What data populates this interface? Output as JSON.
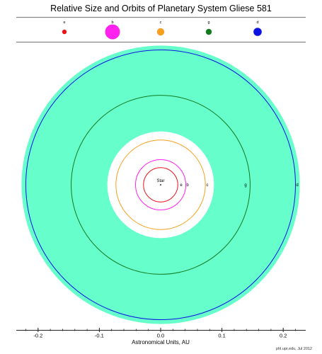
{
  "title": "Relative Size and Orbits of Planetary System Gliese 581",
  "star_label": "Star",
  "planets": [
    {
      "name": "e",
      "color": "#e8141c",
      "size_rank": 1,
      "orbit_au": 0.028
    },
    {
      "name": "b",
      "color": "#ff22ee",
      "size_rank": 5,
      "orbit_au": 0.041
    },
    {
      "name": "c",
      "color": "#f5a020",
      "size_rank": 3,
      "orbit_au": 0.073
    },
    {
      "name": "g",
      "color": "#137a1e",
      "size_rank": 2,
      "orbit_au": 0.146
    },
    {
      "name": "d",
      "color": "#0c12e0",
      "size_rank": 4,
      "orbit_au": 0.22
    }
  ],
  "habitable_zone_au": [
    0.087,
    0.227
  ],
  "habitable_zone_color": "#66ffcc",
  "axis": {
    "label": "Astronomical Units, AU",
    "range": [
      -0.23,
      0.23
    ],
    "ticks": [
      "-0.2",
      "-0.1",
      "0.0",
      "0.1",
      "0.2"
    ],
    "tick_values": [
      -0.2,
      -0.1,
      0.0,
      0.1,
      0.2
    ]
  },
  "credit": "phl.upr.edu, Jul 2012"
}
